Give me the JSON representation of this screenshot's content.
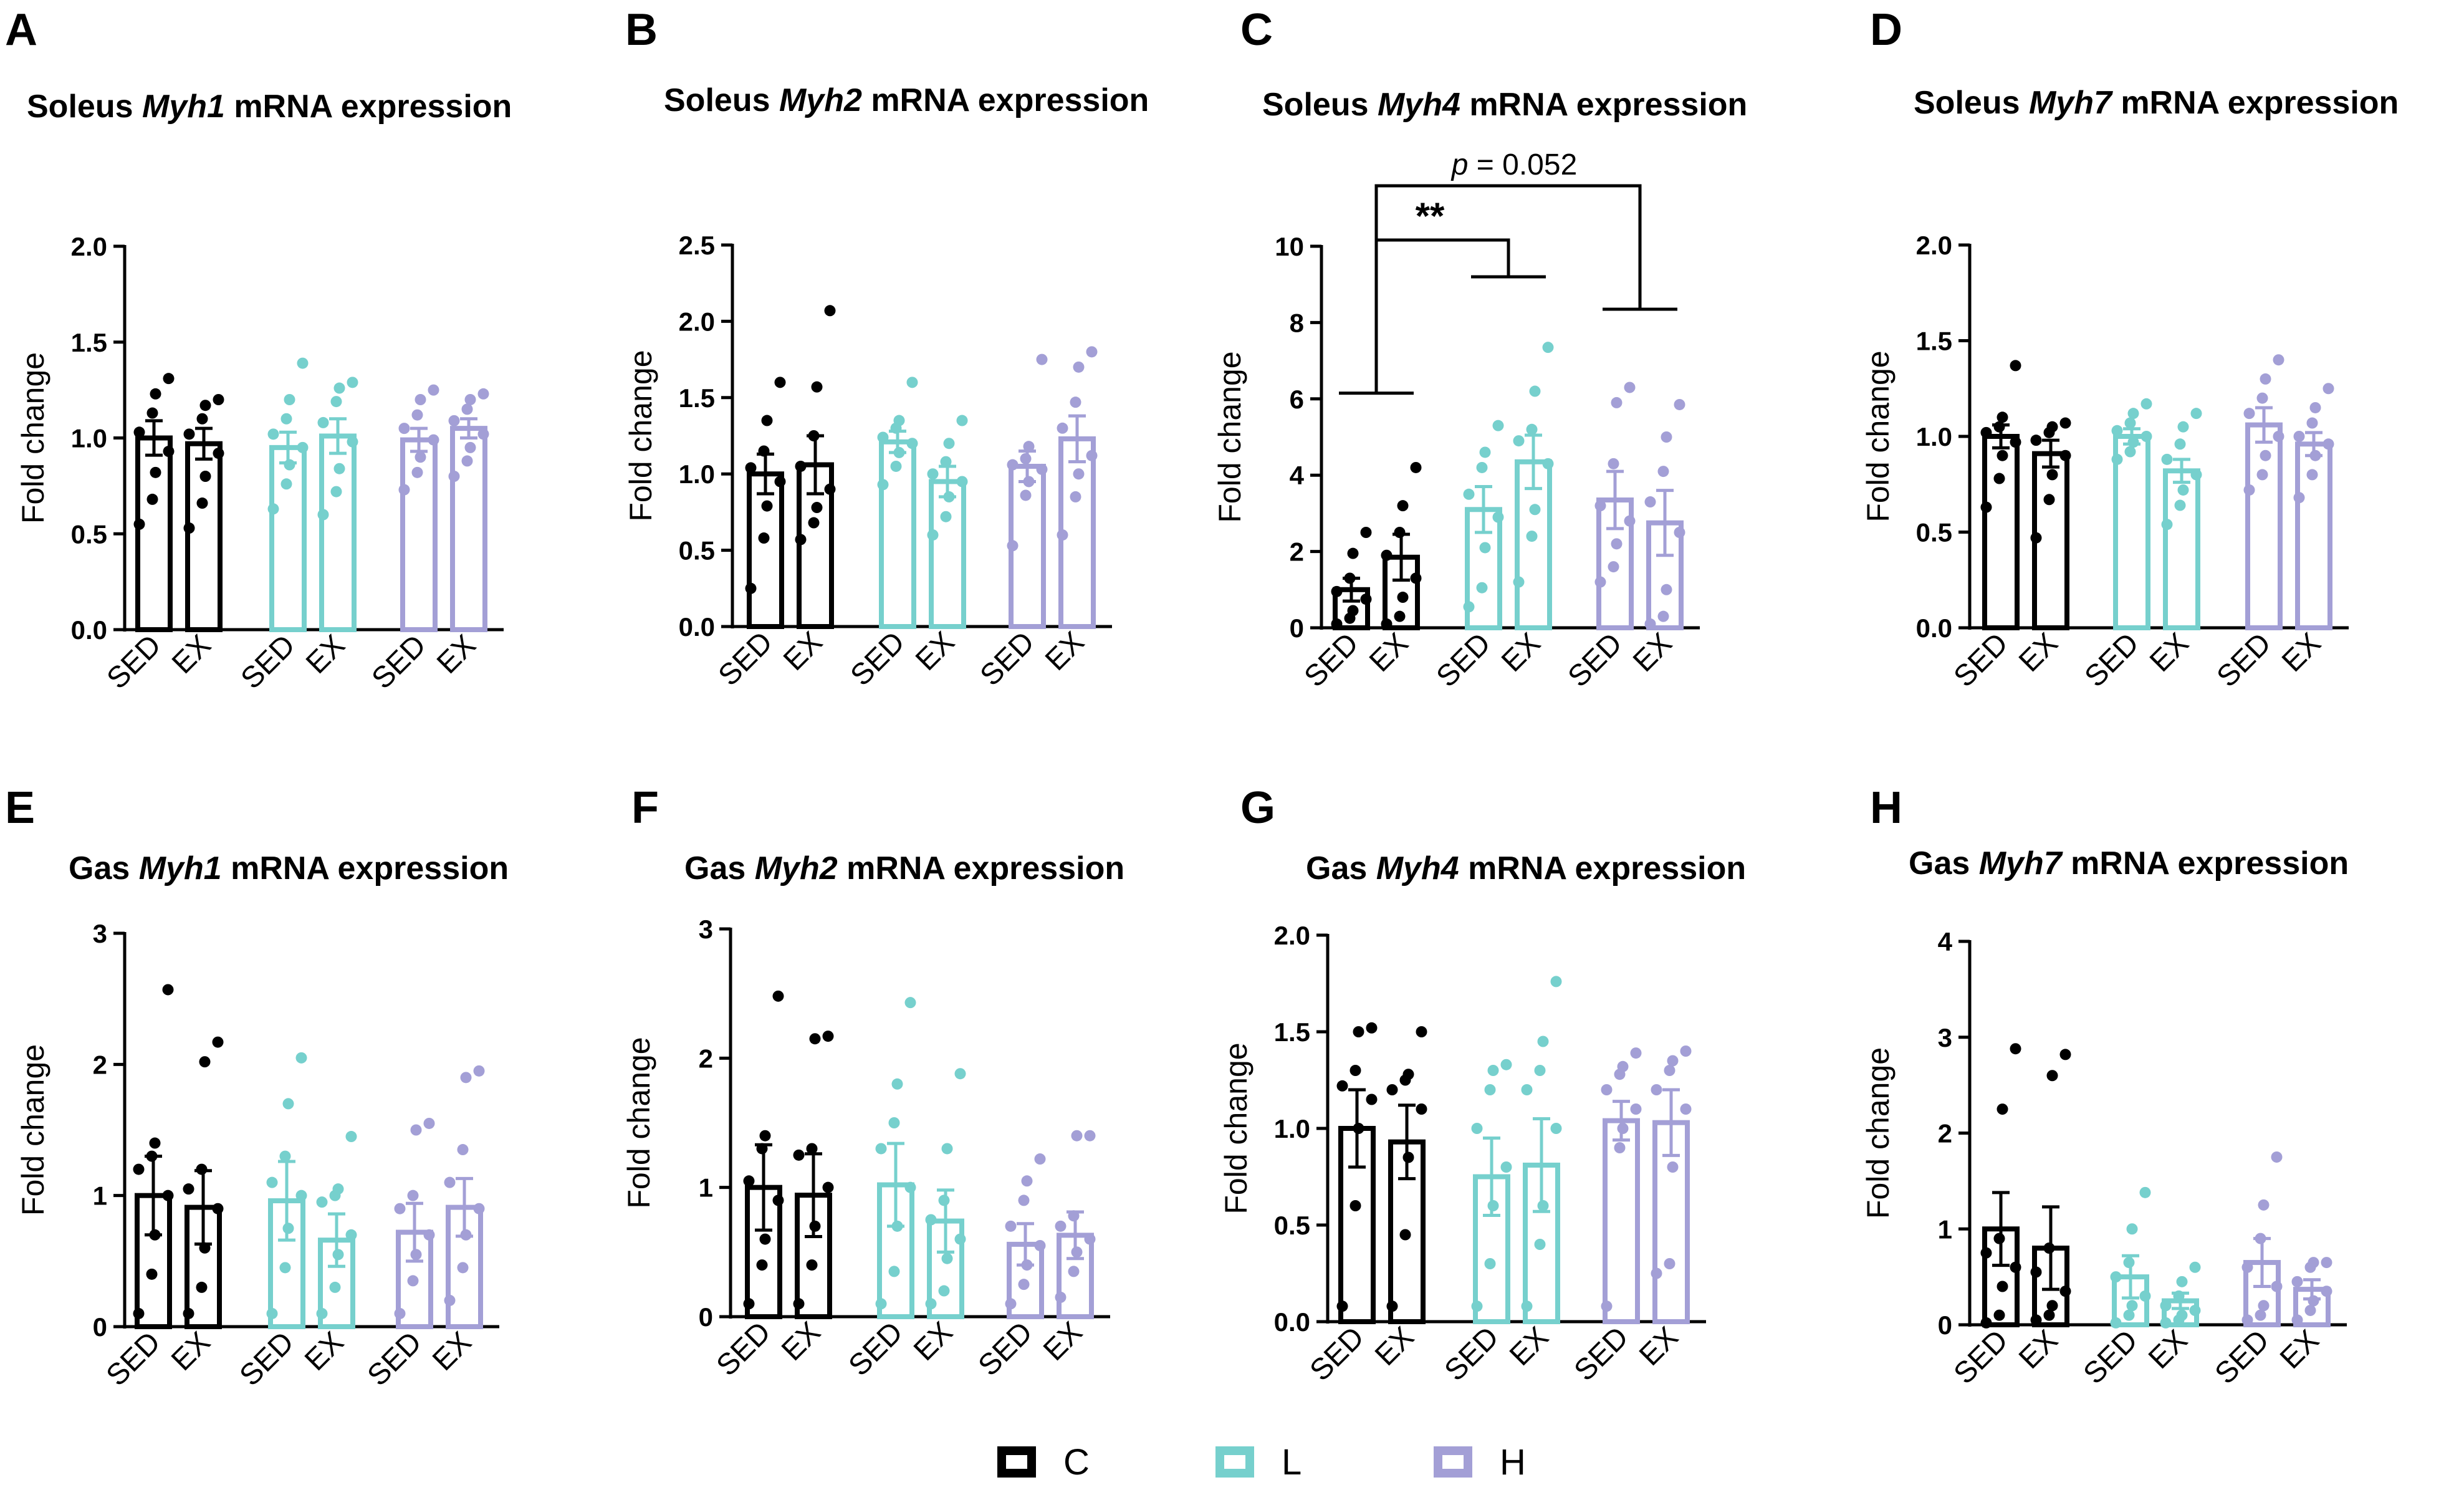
{
  "colors": {
    "C": "#000000",
    "L": "#76d0cd",
    "H": "#a39fd6"
  },
  "legend": [
    {
      "key": "C",
      "label": "C"
    },
    {
      "key": "L",
      "label": "L"
    },
    {
      "key": "H",
      "label": "H"
    }
  ],
  "chart_data": [
    {
      "type": "bar",
      "panel": "A",
      "title_pre": "Soleus ",
      "title_gene": "Myh1",
      "title_post": " mRNA expression",
      "ylabel": "Fold change",
      "ylim": [
        0,
        2.0
      ],
      "yticks": [
        0,
        0.5,
        1.0,
        1.5,
        2.0
      ],
      "yticklabels": [
        "0.0",
        "0.5",
        "1.0",
        "1.5",
        "2.0"
      ],
      "categories": [
        "SED",
        "EX",
        "SED",
        "EX",
        "SED",
        "EX"
      ],
      "series": [
        {
          "name": "C",
          "group": "C",
          "mean": [
            1.0,
            0.97
          ],
          "sem": [
            0.09,
            0.08
          ],
          "points": [
            [
              0.55,
              0.68,
              0.82,
              0.93,
              1.03,
              1.13,
              1.23,
              1.31
            ],
            [
              0.53,
              0.66,
              0.8,
              0.92,
              1.02,
              1.1,
              1.17,
              1.2
            ]
          ]
        },
        {
          "name": "L",
          "group": "L",
          "mean": [
            0.95,
            1.01
          ],
          "sem": [
            0.08,
            0.09
          ],
          "points": [
            [
              0.63,
              0.76,
              0.86,
              0.95,
              1.02,
              1.1,
              1.2,
              1.39
            ],
            [
              0.6,
              0.72,
              0.84,
              0.98,
              1.08,
              1.19,
              1.26,
              1.29
            ]
          ]
        },
        {
          "name": "H",
          "group": "H",
          "mean": [
            0.99,
            1.05
          ],
          "sem": [
            0.06,
            0.05
          ],
          "points": [
            [
              0.73,
              0.82,
              0.9,
              0.99,
              1.05,
              1.12,
              1.2,
              1.25
            ],
            [
              0.8,
              0.88,
              0.95,
              1.02,
              1.09,
              1.15,
              1.2,
              1.23
            ]
          ]
        }
      ]
    },
    {
      "type": "bar",
      "panel": "B",
      "title_pre": "Soleus ",
      "title_gene": "Myh2",
      "title_post": " mRNA expression",
      "ylabel": "Fold change",
      "ylim": [
        0,
        2.5
      ],
      "yticks": [
        0,
        0.5,
        1.0,
        1.5,
        2.0,
        2.5
      ],
      "yticklabels": [
        "0.0",
        "0.5",
        "1.0",
        "1.5",
        "2.0",
        "2.5"
      ],
      "categories": [
        "SED",
        "EX",
        "SED",
        "EX",
        "SED",
        "EX"
      ],
      "series": [
        {
          "name": "C",
          "group": "C",
          "mean": [
            1.0,
            1.06
          ],
          "sem": [
            0.13,
            0.19
          ],
          "points": [
            [
              0.25,
              0.58,
              0.79,
              0.95,
              1.04,
              1.15,
              1.35,
              1.6
            ],
            [
              0.57,
              0.68,
              0.78,
              0.9,
              1.05,
              1.25,
              1.57,
              2.07
            ]
          ]
        },
        {
          "name": "L",
          "group": "L",
          "mean": [
            1.21,
            0.95
          ],
          "sem": [
            0.07,
            0.1
          ],
          "points": [
            [
              0.93,
              1.05,
              1.14,
              1.2,
              1.24,
              1.3,
              1.35,
              1.6
            ],
            [
              0.6,
              0.72,
              0.85,
              0.95,
              1.0,
              1.08,
              1.2,
              1.35
            ]
          ]
        },
        {
          "name": "H",
          "group": "H",
          "mean": [
            1.05,
            1.23
          ],
          "sem": [
            0.1,
            0.15
          ],
          "points": [
            [
              0.53,
              0.86,
              0.95,
              1.03,
              1.06,
              1.1,
              1.18,
              1.75
            ],
            [
              0.6,
              0.85,
              1.0,
              1.12,
              1.3,
              1.47,
              1.7,
              1.8
            ]
          ]
        }
      ]
    },
    {
      "type": "bar",
      "panel": "C",
      "title_pre": "Soleus ",
      "title_gene": "Myh4",
      "title_post": " mRNA expression",
      "ylabel": "Fold change",
      "ylim": [
        0,
        10
      ],
      "yticks": [
        0,
        2,
        4,
        6,
        8,
        10
      ],
      "yticklabels": [
        "0",
        "2",
        "4",
        "6",
        "8",
        "10"
      ],
      "categories": [
        "SED",
        "EX",
        "SED",
        "EX",
        "SED",
        "EX"
      ],
      "series": [
        {
          "name": "C",
          "group": "C",
          "mean": [
            1.0,
            1.85
          ],
          "sem": [
            0.3,
            0.6
          ],
          "points": [
            [
              0.1,
              0.25,
              0.45,
              0.75,
              0.95,
              1.3,
              1.95,
              2.5
            ],
            [
              0.1,
              0.3,
              0.8,
              1.3,
              1.9,
              2.5,
              3.2,
              4.2
            ]
          ]
        },
        {
          "name": "L",
          "group": "L",
          "mean": [
            3.1,
            4.35
          ],
          "sem": [
            0.6,
            0.7
          ],
          "points": [
            [
              0.55,
              1.05,
              2.1,
              2.9,
              3.5,
              4.2,
              4.6,
              5.3
            ],
            [
              1.2,
              2.4,
              3.1,
              4.3,
              4.9,
              5.2,
              6.2,
              7.35
            ]
          ]
        },
        {
          "name": "H",
          "group": "H",
          "mean": [
            3.35,
            2.75
          ],
          "sem": [
            0.75,
            0.85
          ],
          "points": [
            [
              1.2,
              1.6,
              2.2,
              2.8,
              3.2,
              4.3,
              5.9,
              6.3
            ],
            [
              0.1,
              0.3,
              1.0,
              2.5,
              3.3,
              4.1,
              5.0,
              5.85
            ]
          ]
        }
      ],
      "annotations": [
        {
          "label": "**",
          "from_group": "C",
          "to_group": "L"
        },
        {
          "label": "p = 0.052",
          "from_group": "C",
          "to_group": "H"
        }
      ]
    },
    {
      "type": "bar",
      "panel": "D",
      "title_pre": "Soleus ",
      "title_gene": "Myh7",
      "title_post": " mRNA expression",
      "ylabel": "Fold change",
      "ylim": [
        0,
        2.0
      ],
      "yticks": [
        0,
        0.5,
        1.0,
        1.5,
        2.0
      ],
      "yticklabels": [
        "0.0",
        "0.5",
        "1.0",
        "1.5",
        "2.0"
      ],
      "categories": [
        "SED",
        "EX",
        "SED",
        "EX",
        "SED",
        "EX"
      ],
      "series": [
        {
          "name": "C",
          "group": "C",
          "mean": [
            1.0,
            0.91
          ],
          "sem": [
            0.06,
            0.07
          ],
          "points": [
            [
              0.63,
              0.78,
              0.9,
              0.97,
              1.02,
              1.05,
              1.1,
              1.37
            ],
            [
              0.47,
              0.67,
              0.8,
              0.9,
              0.98,
              1.02,
              1.05,
              1.07
            ]
          ]
        },
        {
          "name": "L",
          "group": "L",
          "mean": [
            1.0,
            0.82
          ],
          "sem": [
            0.04,
            0.06
          ],
          "points": [
            [
              0.88,
              0.92,
              0.97,
              1.0,
              1.03,
              1.07,
              1.12,
              1.17
            ],
            [
              0.54,
              0.64,
              0.72,
              0.8,
              0.88,
              0.96,
              1.05,
              1.12
            ]
          ]
        },
        {
          "name": "H",
          "group": "H",
          "mean": [
            1.06,
            0.96
          ],
          "sem": [
            0.09,
            0.06
          ],
          "points": [
            [
              0.72,
              0.8,
              0.9,
              1.0,
              1.12,
              1.2,
              1.3,
              1.4
            ],
            [
              0.68,
              0.8,
              0.9,
              0.96,
              1.0,
              1.07,
              1.15,
              1.25
            ]
          ]
        }
      ]
    },
    {
      "type": "bar",
      "panel": "E",
      "title_pre": "Gas ",
      "title_gene": "Myh1",
      "title_post": " mRNA expression",
      "ylabel": "Fold change",
      "ylim": [
        0,
        3
      ],
      "yticks": [
        0,
        1,
        2,
        3
      ],
      "yticklabels": [
        "0",
        "1",
        "2",
        "3"
      ],
      "categories": [
        "SED",
        "EX",
        "SED",
        "EX",
        "SED",
        "EX"
      ],
      "series": [
        {
          "name": "C",
          "group": "C",
          "mean": [
            1.0,
            0.91
          ],
          "sem": [
            0.3,
            0.28
          ],
          "points": [
            [
              0.1,
              0.4,
              0.7,
              1.0,
              1.2,
              1.3,
              1.4,
              2.57
            ],
            [
              0.1,
              0.3,
              0.6,
              0.9,
              1.05,
              1.2,
              2.02,
              2.17
            ]
          ]
        },
        {
          "name": "L",
          "group": "L",
          "mean": [
            0.96,
            0.66
          ],
          "sem": [
            0.3,
            0.2
          ],
          "points": [
            [
              0.1,
              0.45,
              0.75,
              1.0,
              1.1,
              1.3,
              1.7,
              2.05
            ],
            [
              0.1,
              0.3,
              0.55,
              0.7,
              0.95,
              1.0,
              1.05,
              1.45
            ]
          ]
        },
        {
          "name": "H",
          "group": "H",
          "mean": [
            0.72,
            0.91
          ],
          "sem": [
            0.22,
            0.22
          ],
          "points": [
            [
              0.1,
              0.35,
              0.55,
              0.7,
              0.9,
              1.0,
              1.5,
              1.55
            ],
            [
              0.2,
              0.45,
              0.7,
              0.9,
              1.1,
              1.35,
              1.9,
              1.95
            ]
          ]
        }
      ]
    },
    {
      "type": "bar",
      "panel": "F",
      "title_pre": "Gas ",
      "title_gene": "Myh2",
      "title_post": " mRNA expression",
      "ylabel": "Fold change",
      "ylim": [
        0,
        3
      ],
      "yticks": [
        0,
        1,
        2,
        3
      ],
      "yticklabels": [
        "0",
        "1",
        "2",
        "3"
      ],
      "categories": [
        "SED",
        "EX",
        "SED",
        "EX",
        "SED",
        "EX"
      ],
      "series": [
        {
          "name": "C",
          "group": "C",
          "mean": [
            1.0,
            0.94
          ],
          "sem": [
            0.33,
            0.32
          ],
          "points": [
            [
              0.1,
              0.4,
              0.6,
              0.9,
              1.05,
              1.3,
              1.4,
              2.48
            ],
            [
              0.1,
              0.4,
              0.7,
              1.0,
              1.25,
              1.3,
              2.15,
              2.17
            ]
          ]
        },
        {
          "name": "L",
          "group": "L",
          "mean": [
            1.02,
            0.74
          ],
          "sem": [
            0.32,
            0.24
          ],
          "points": [
            [
              0.1,
              0.35,
              0.7,
              1.0,
              1.3,
              1.5,
              1.8,
              2.43
            ],
            [
              0.1,
              0.2,
              0.45,
              0.6,
              0.75,
              0.9,
              1.3,
              1.88
            ]
          ]
        },
        {
          "name": "H",
          "group": "H",
          "mean": [
            0.56,
            0.63
          ],
          "sem": [
            0.16,
            0.18
          ],
          "points": [
            [
              0.1,
              0.25,
              0.4,
              0.55,
              0.7,
              0.9,
              1.05,
              1.22
            ],
            [
              0.15,
              0.35,
              0.5,
              0.6,
              0.7,
              0.78,
              1.4,
              1.4
            ]
          ]
        }
      ]
    },
    {
      "type": "bar",
      "panel": "G",
      "title_pre": "Gas ",
      "title_gene": "Myh4",
      "title_post": " mRNA expression",
      "ylabel": "Fold change",
      "ylim": [
        0,
        2.0
      ],
      "yticks": [
        0,
        0.5,
        1.0,
        1.5,
        2.0
      ],
      "yticklabels": [
        "0.0",
        "0.5",
        "1.0",
        "1.5",
        "2.0"
      ],
      "categories": [
        "SED",
        "EX",
        "SED",
        "EX",
        "SED",
        "EX"
      ],
      "series": [
        {
          "name": "C",
          "group": "C",
          "mean": [
            1.0,
            0.93
          ],
          "sem": [
            0.2,
            0.19
          ],
          "points": [
            [
              0.08,
              0.6,
              1.0,
              1.15,
              1.22,
              1.3,
              1.5,
              1.52
            ],
            [
              0.08,
              0.45,
              0.85,
              1.1,
              1.2,
              1.25,
              1.28,
              1.5
            ]
          ]
        },
        {
          "name": "L",
          "group": "L",
          "mean": [
            0.75,
            0.81
          ],
          "sem": [
            0.2,
            0.24
          ],
          "points": [
            [
              0.08,
              0.3,
              0.6,
              0.8,
              1.0,
              1.2,
              1.3,
              1.33
            ],
            [
              0.08,
              0.4,
              0.6,
              1.0,
              1.2,
              1.3,
              1.45,
              1.76
            ]
          ]
        },
        {
          "name": "H",
          "group": "H",
          "mean": [
            1.04,
            1.03
          ],
          "sem": [
            0.1,
            0.17
          ],
          "points": [
            [
              0.08,
              0.9,
              1.0,
              1.1,
              1.2,
              1.28,
              1.32,
              1.39
            ],
            [
              0.25,
              0.3,
              0.8,
              1.1,
              1.2,
              1.3,
              1.35,
              1.4
            ]
          ]
        }
      ]
    },
    {
      "type": "bar",
      "panel": "H",
      "title_pre": "Gas ",
      "title_gene": "Myh7",
      "title_post": " mRNA expression",
      "ylabel": "Fold change",
      "ylim": [
        0,
        4
      ],
      "yticks": [
        0,
        1,
        2,
        3,
        4
      ],
      "yticklabels": [
        "0",
        "1",
        "2",
        "3",
        "4"
      ],
      "categories": [
        "SED",
        "EX",
        "SED",
        "EX",
        "SED",
        "EX"
      ],
      "series": [
        {
          "name": "C",
          "group": "C",
          "mean": [
            1.0,
            0.8
          ],
          "sem": [
            0.38,
            0.43
          ],
          "points": [
            [
              0.02,
              0.1,
              0.4,
              0.6,
              0.75,
              0.9,
              2.25,
              2.88
            ],
            [
              0.05,
              0.1,
              0.2,
              0.35,
              0.55,
              0.8,
              2.6,
              2.82
            ]
          ]
        },
        {
          "name": "L",
          "group": "L",
          "mean": [
            0.5,
            0.25
          ],
          "sem": [
            0.22,
            0.08
          ],
          "points": [
            [
              0.02,
              0.1,
              0.2,
              0.3,
              0.5,
              0.65,
              1.0,
              1.38
            ],
            [
              0.02,
              0.05,
              0.1,
              0.15,
              0.2,
              0.3,
              0.45,
              0.6
            ]
          ]
        },
        {
          "name": "H",
          "group": "H",
          "mean": [
            0.65,
            0.37
          ],
          "sem": [
            0.25,
            0.1
          ],
          "points": [
            [
              0.05,
              0.1,
              0.2,
              0.4,
              0.6,
              0.9,
              1.25,
              1.75
            ],
            [
              0.05,
              0.15,
              0.25,
              0.35,
              0.45,
              0.6,
              0.65,
              0.65
            ]
          ]
        }
      ]
    }
  ]
}
